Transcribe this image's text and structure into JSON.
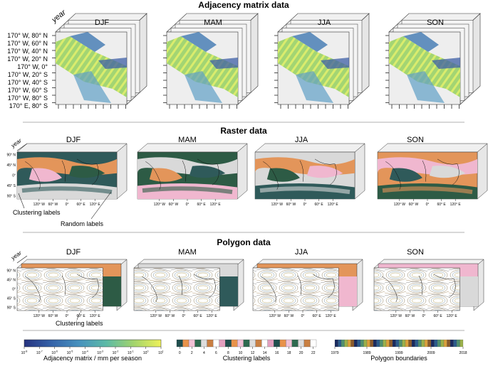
{
  "sections": {
    "adjacency": "Adjacency matrix data",
    "raster": "Raster data",
    "polygon": "Polygon data"
  },
  "seasons": [
    "DJF",
    "MAM",
    "JJA",
    "SON"
  ],
  "year_label": "year",
  "adjacency_row_labels": [
    "170° W, 80° N",
    "170° W, 60° N",
    "170° W, 40° N",
    "170° W, 20° N",
    "170° W, 0°",
    "170° W, 20° S",
    "170° W, 40° S",
    "170° W, 60° S",
    "170° W, 80° S",
    "170° E, 80° S"
  ],
  "map_lat_labels": [
    "90° N",
    "45° N",
    "0°",
    "45° S",
    "90° S"
  ],
  "map_lon_labels": [
    "120° W",
    "60° W",
    "0°",
    "60° E",
    "120° E"
  ],
  "annotations": {
    "clustering_raster": "Clustering labels",
    "random": "Random labels",
    "clustering_polygon": "Clustering labels"
  },
  "legends": {
    "adjacency": {
      "label": "Adjacency matrix / mm per season",
      "ticks": [
        "10",
        "10",
        "10",
        "10",
        "10",
        "10",
        "10",
        "10",
        "10",
        "10"
      ],
      "exponents": [
        "-8",
        "-7",
        "-6",
        "-5",
        "-4",
        "-3",
        "-2",
        "-1",
        "0",
        "1"
      ],
      "colors": [
        "#2c3f8f",
        "#3b6db3",
        "#4a98c2",
        "#5fbfa8",
        "#9bd26f",
        "#e3ef5b"
      ]
    },
    "clustering": {
      "label": "Clustering labels",
      "ticks": [
        "0",
        "2",
        "4",
        "6",
        "8",
        "10",
        "12",
        "14",
        "16",
        "18",
        "20",
        "22"
      ],
      "colors": [
        "#1f4e4d",
        "#e8924a",
        "#f1c1d6",
        "#2e6a4f",
        "#dddddd",
        "#c97f42",
        "#ffffff",
        "#e29fbf"
      ]
    },
    "polygon": {
      "label": "Polygon boundaries",
      "ticks": [
        "1979",
        "1989",
        "1999",
        "2009",
        "2018"
      ],
      "colors": [
        "#1a2a5e",
        "#2b5b8c",
        "#4f8f6f",
        "#9ab04a",
        "#d9a03b",
        "#8a5a2c"
      ]
    }
  },
  "colors": {
    "ocean_teal": "#2f5a5a",
    "orange": "#e3955a",
    "pink": "#f0b7cf",
    "dark_green": "#2d5b45",
    "grey": "#d9d9d9",
    "panel_grey": "#e9e9e9"
  }
}
